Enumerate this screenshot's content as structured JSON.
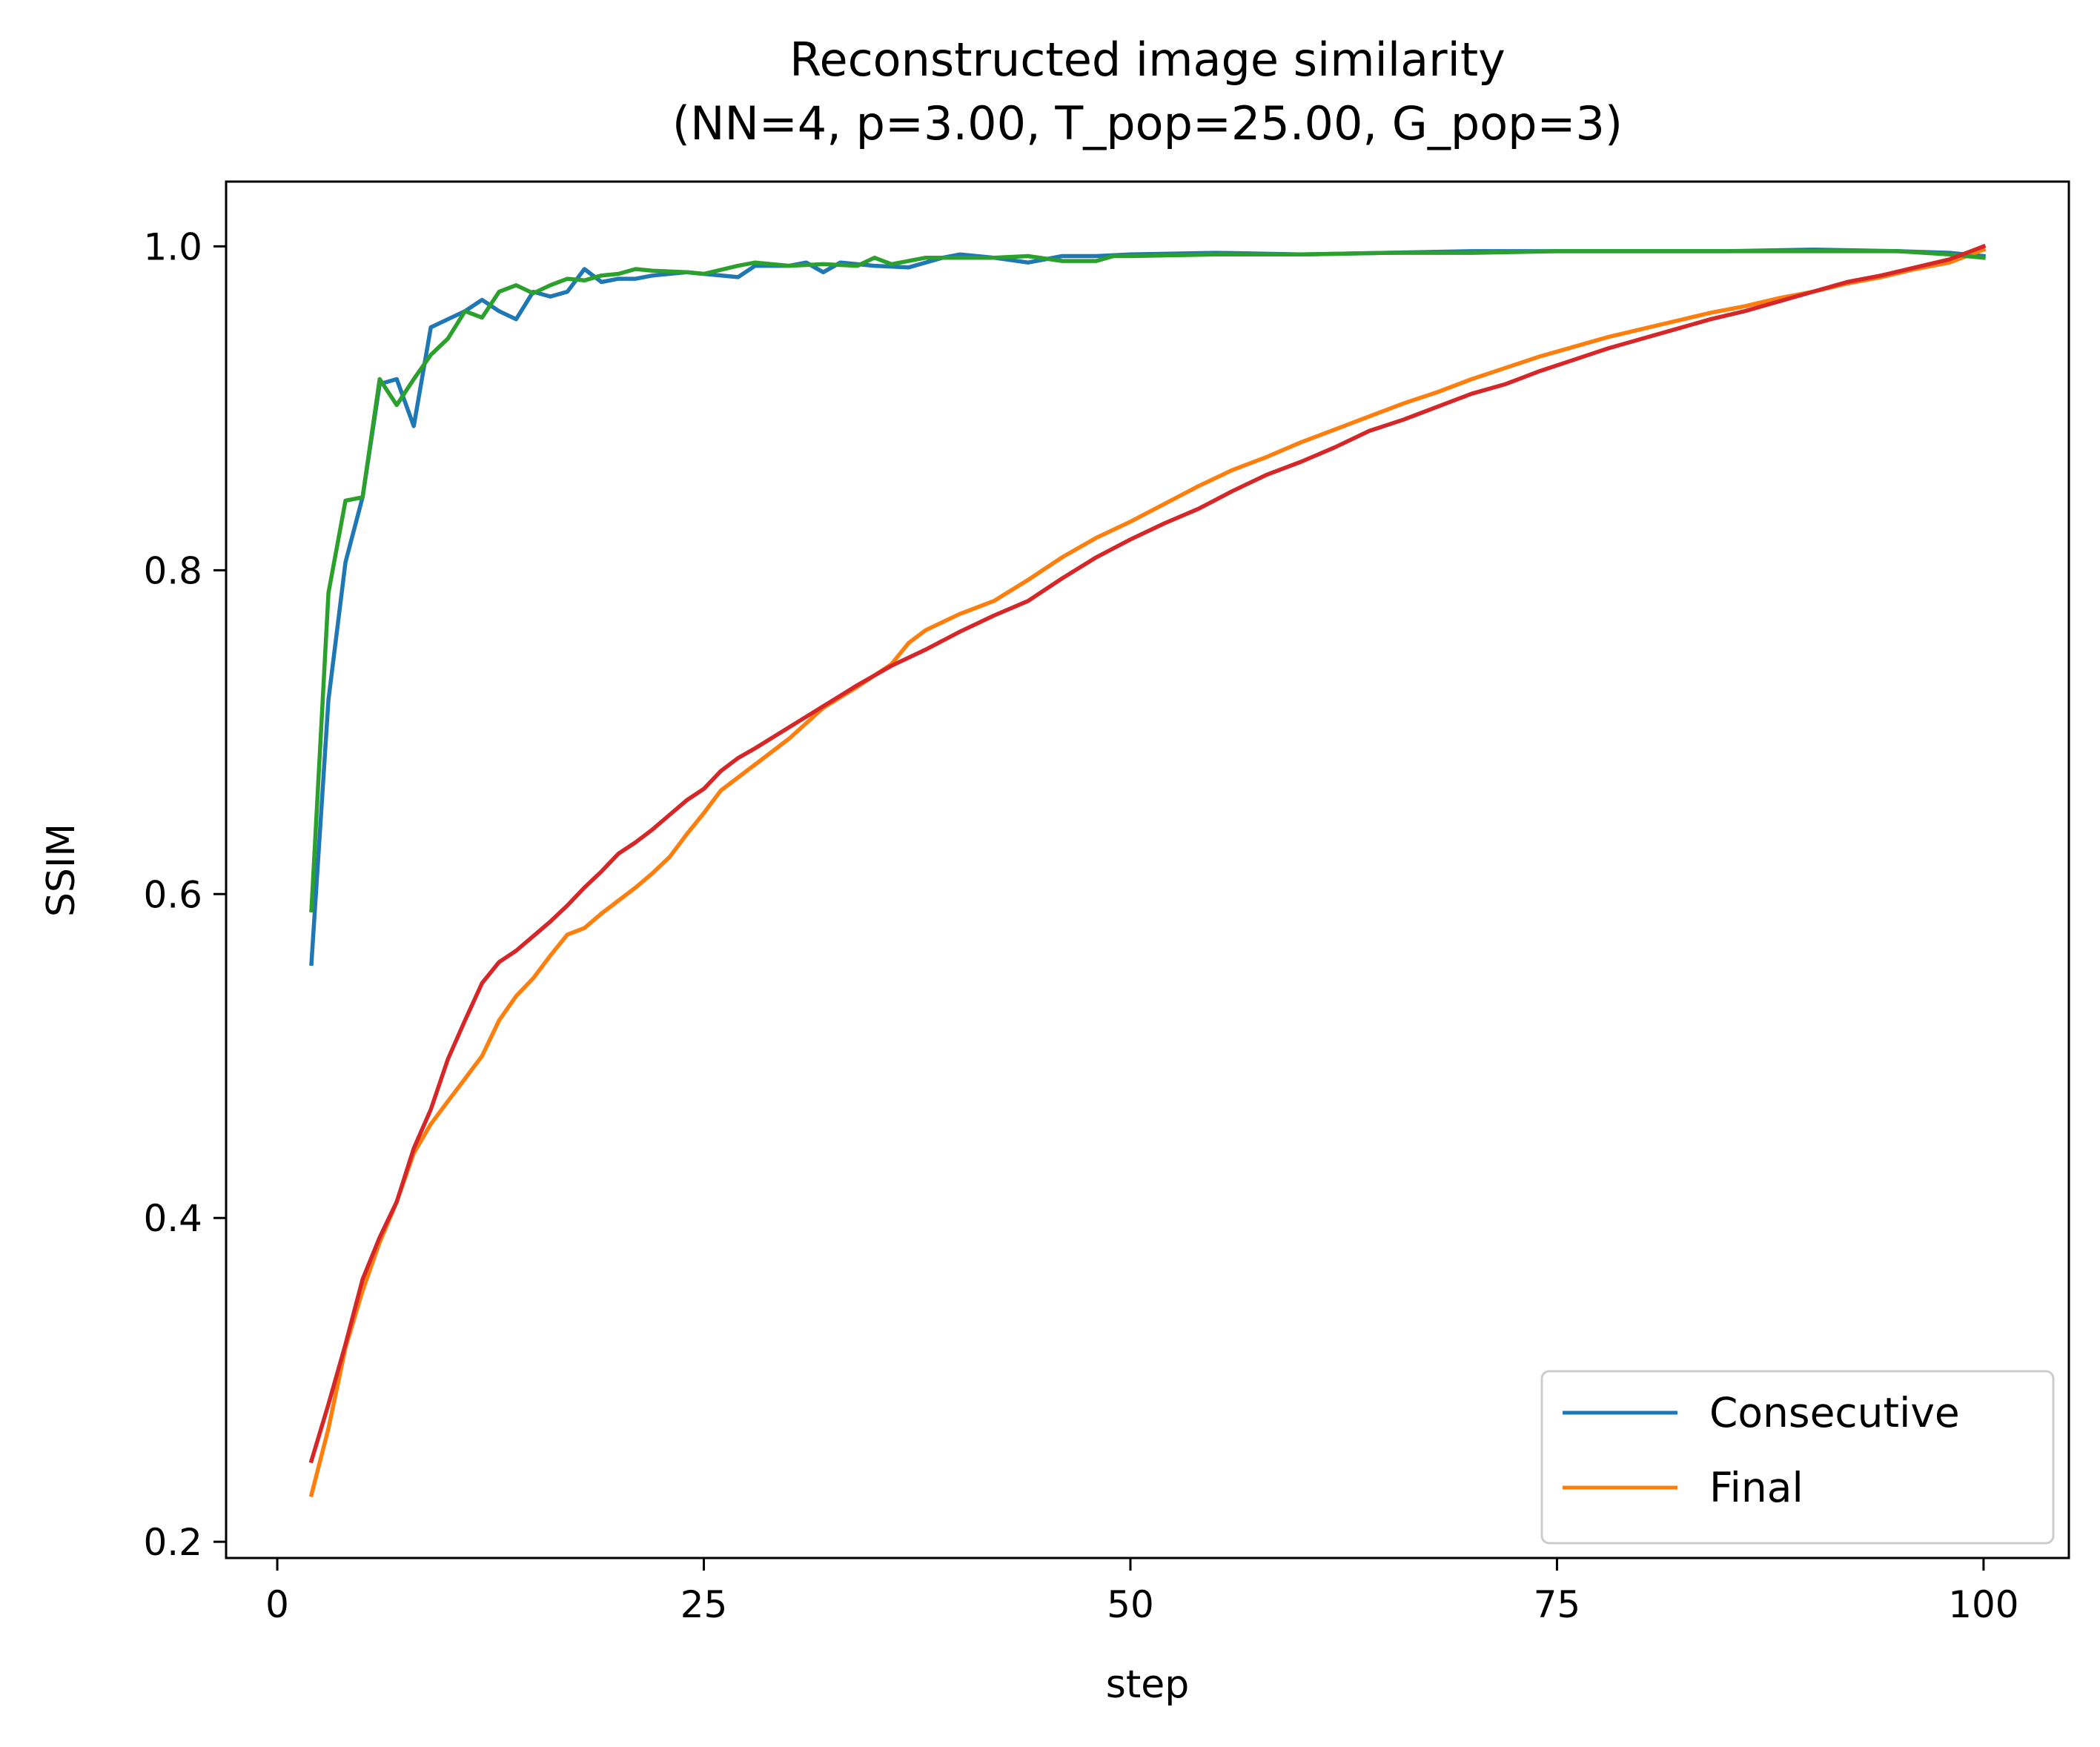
{
  "chart_data": {
    "type": "line",
    "title": "Reconstructed image similarity",
    "subtitle": "(NN=4, p=3.00, T_pop=25.00, G_pop=3)",
    "xlabel": "step",
    "ylabel": "SSIM",
    "xlim": [
      -3,
      105
    ],
    "ylim": [
      0.19,
      1.04
    ],
    "xticks": [
      0,
      25,
      50,
      75,
      100
    ],
    "yticks": [
      0.2,
      0.4,
      0.6,
      0.8,
      1.0
    ],
    "xtick_labels": [
      "0",
      "25",
      "50",
      "75",
      "100"
    ],
    "ytick_labels": [
      "0.2",
      "0.4",
      "0.6",
      "0.8",
      "1.0"
    ],
    "grid": false,
    "legend_position": "bottom-right",
    "legend": [
      {
        "label": "Consecutive",
        "color": "#1f77b4"
      },
      {
        "label": "Final",
        "color": "#ff7f0e"
      }
    ],
    "series": [
      {
        "name": "Consecutive",
        "color": "#1f77b4",
        "points": [
          [
            2,
            0.557
          ],
          [
            3,
            0.72
          ],
          [
            4,
            0.805
          ],
          [
            5,
            0.845
          ],
          [
            6,
            0.915
          ],
          [
            7,
            0.918
          ],
          [
            8,
            0.889
          ],
          [
            9,
            0.95
          ],
          [
            10,
            0.955
          ],
          [
            11,
            0.96
          ],
          [
            12,
            0.967
          ],
          [
            13,
            0.96
          ],
          [
            14,
            0.955
          ],
          [
            15,
            0.972
          ],
          [
            16,
            0.969
          ],
          [
            17,
            0.972
          ],
          [
            18,
            0.986
          ],
          [
            19,
            0.978
          ],
          [
            20,
            0.98
          ],
          [
            21,
            0.98
          ],
          [
            22,
            0.982
          ],
          [
            24,
            0.984
          ],
          [
            25,
            0.983
          ],
          [
            27,
            0.981
          ],
          [
            28,
            0.988
          ],
          [
            30,
            0.988
          ],
          [
            31,
            0.99
          ],
          [
            32,
            0.984
          ],
          [
            33,
            0.99
          ],
          [
            35,
            0.988
          ],
          [
            37,
            0.987
          ],
          [
            39,
            0.993
          ],
          [
            40,
            0.995
          ],
          [
            42,
            0.993
          ],
          [
            44,
            0.99
          ],
          [
            46,
            0.994
          ],
          [
            48,
            0.994
          ],
          [
            50,
            0.995
          ],
          [
            55,
            0.996
          ],
          [
            60,
            0.995
          ],
          [
            65,
            0.996
          ],
          [
            70,
            0.997
          ],
          [
            75,
            0.997
          ],
          [
            80,
            0.997
          ],
          [
            85,
            0.997
          ],
          [
            90,
            0.998
          ],
          [
            95,
            0.997
          ],
          [
            98,
            0.996
          ],
          [
            100,
            0.994
          ]
        ]
      },
      {
        "name": "Final",
        "color": "#ff7f0e",
        "points": [
          [
            2,
            0.229
          ],
          [
            3,
            0.27
          ],
          [
            4,
            0.32
          ],
          [
            5,
            0.355
          ],
          [
            6,
            0.385
          ],
          [
            7,
            0.41
          ],
          [
            8,
            0.44
          ],
          [
            9,
            0.458
          ],
          [
            10,
            0.472
          ],
          [
            11,
            0.486
          ],
          [
            12,
            0.5
          ],
          [
            13,
            0.522
          ],
          [
            14,
            0.537
          ],
          [
            15,
            0.548
          ],
          [
            16,
            0.562
          ],
          [
            17,
            0.575
          ],
          [
            18,
            0.579
          ],
          [
            19,
            0.588
          ],
          [
            20,
            0.596
          ],
          [
            21,
            0.604
          ],
          [
            22,
            0.613
          ],
          [
            23,
            0.623
          ],
          [
            24,
            0.637
          ],
          [
            25,
            0.65
          ],
          [
            26,
            0.664
          ],
          [
            27,
            0.672
          ],
          [
            28,
            0.68
          ],
          [
            29,
            0.688
          ],
          [
            30,
            0.696
          ],
          [
            32,
            0.715
          ],
          [
            34,
            0.728
          ],
          [
            36,
            0.742
          ],
          [
            37,
            0.755
          ],
          [
            38,
            0.763
          ],
          [
            40,
            0.773
          ],
          [
            42,
            0.781
          ],
          [
            44,
            0.794
          ],
          [
            46,
            0.808
          ],
          [
            48,
            0.82
          ],
          [
            50,
            0.83
          ],
          [
            52,
            0.841
          ],
          [
            54,
            0.852
          ],
          [
            56,
            0.862
          ],
          [
            58,
            0.87
          ],
          [
            60,
            0.879
          ],
          [
            62,
            0.887
          ],
          [
            64,
            0.895
          ],
          [
            66,
            0.903
          ],
          [
            68,
            0.91
          ],
          [
            70,
            0.918
          ],
          [
            72,
            0.925
          ],
          [
            74,
            0.932
          ],
          [
            76,
            0.938
          ],
          [
            78,
            0.944
          ],
          [
            80,
            0.949
          ],
          [
            82,
            0.954
          ],
          [
            84,
            0.959
          ],
          [
            86,
            0.963
          ],
          [
            88,
            0.968
          ],
          [
            90,
            0.972
          ],
          [
            92,
            0.977
          ],
          [
            94,
            0.981
          ],
          [
            96,
            0.986
          ],
          [
            98,
            0.99
          ],
          [
            100,
            0.998
          ]
        ]
      },
      {
        "color": "#2ca02c",
        "points": [
          [
            2,
            0.59
          ],
          [
            3,
            0.786
          ],
          [
            4,
            0.843
          ],
          [
            5,
            0.845
          ],
          [
            6,
            0.918
          ],
          [
            7,
            0.902
          ],
          [
            8,
            0.918
          ],
          [
            9,
            0.933
          ],
          [
            10,
            0.943
          ],
          [
            11,
            0.96
          ],
          [
            12,
            0.956
          ],
          [
            13,
            0.972
          ],
          [
            14,
            0.976
          ],
          [
            15,
            0.971
          ],
          [
            16,
            0.976
          ],
          [
            17,
            0.98
          ],
          [
            18,
            0.979
          ],
          [
            19,
            0.982
          ],
          [
            20,
            0.983
          ],
          [
            21,
            0.986
          ],
          [
            22,
            0.985
          ],
          [
            24,
            0.984
          ],
          [
            25,
            0.983
          ],
          [
            27,
            0.988
          ],
          [
            28,
            0.99
          ],
          [
            30,
            0.988
          ],
          [
            32,
            0.989
          ],
          [
            34,
            0.988
          ],
          [
            35,
            0.993
          ],
          [
            36,
            0.989
          ],
          [
            38,
            0.993
          ],
          [
            40,
            0.993
          ],
          [
            42,
            0.993
          ],
          [
            44,
            0.994
          ],
          [
            46,
            0.991
          ],
          [
            48,
            0.991
          ],
          [
            49,
            0.994
          ],
          [
            50,
            0.994
          ],
          [
            55,
            0.995
          ],
          [
            60,
            0.995
          ],
          [
            65,
            0.996
          ],
          [
            70,
            0.996
          ],
          [
            75,
            0.997
          ],
          [
            80,
            0.997
          ],
          [
            85,
            0.997
          ],
          [
            90,
            0.997
          ],
          [
            95,
            0.997
          ],
          [
            98,
            0.995
          ],
          [
            100,
            0.993
          ]
        ]
      },
      {
        "color": "#d62728",
        "points": [
          [
            2,
            0.25
          ],
          [
            3,
            0.285
          ],
          [
            4,
            0.322
          ],
          [
            5,
            0.362
          ],
          [
            6,
            0.388
          ],
          [
            7,
            0.41
          ],
          [
            8,
            0.443
          ],
          [
            9,
            0.467
          ],
          [
            10,
            0.498
          ],
          [
            11,
            0.522
          ],
          [
            12,
            0.545
          ],
          [
            13,
            0.558
          ],
          [
            14,
            0.565
          ],
          [
            15,
            0.574
          ],
          [
            16,
            0.583
          ],
          [
            17,
            0.593
          ],
          [
            18,
            0.604
          ],
          [
            19,
            0.614
          ],
          [
            20,
            0.625
          ],
          [
            21,
            0.632
          ],
          [
            22,
            0.64
          ],
          [
            23,
            0.649
          ],
          [
            24,
            0.658
          ],
          [
            25,
            0.665
          ],
          [
            26,
            0.676
          ],
          [
            27,
            0.684
          ],
          [
            28,
            0.69
          ],
          [
            30,
            0.703
          ],
          [
            32,
            0.716
          ],
          [
            34,
            0.729
          ],
          [
            36,
            0.741
          ],
          [
            38,
            0.751
          ],
          [
            40,
            0.762
          ],
          [
            42,
            0.772
          ],
          [
            44,
            0.781
          ],
          [
            46,
            0.795
          ],
          [
            48,
            0.808
          ],
          [
            50,
            0.819
          ],
          [
            52,
            0.829
          ],
          [
            54,
            0.838
          ],
          [
            56,
            0.849
          ],
          [
            58,
            0.859
          ],
          [
            60,
            0.867
          ],
          [
            62,
            0.876
          ],
          [
            64,
            0.886
          ],
          [
            66,
            0.893
          ],
          [
            68,
            0.901
          ],
          [
            70,
            0.909
          ],
          [
            72,
            0.915
          ],
          [
            74,
            0.923
          ],
          [
            76,
            0.93
          ],
          [
            78,
            0.937
          ],
          [
            80,
            0.943
          ],
          [
            82,
            0.949
          ],
          [
            84,
            0.955
          ],
          [
            86,
            0.96
          ],
          [
            88,
            0.966
          ],
          [
            90,
            0.972
          ],
          [
            92,
            0.978
          ],
          [
            94,
            0.982
          ],
          [
            96,
            0.987
          ],
          [
            98,
            0.992
          ],
          [
            100,
            1.0
          ]
        ]
      }
    ]
  }
}
